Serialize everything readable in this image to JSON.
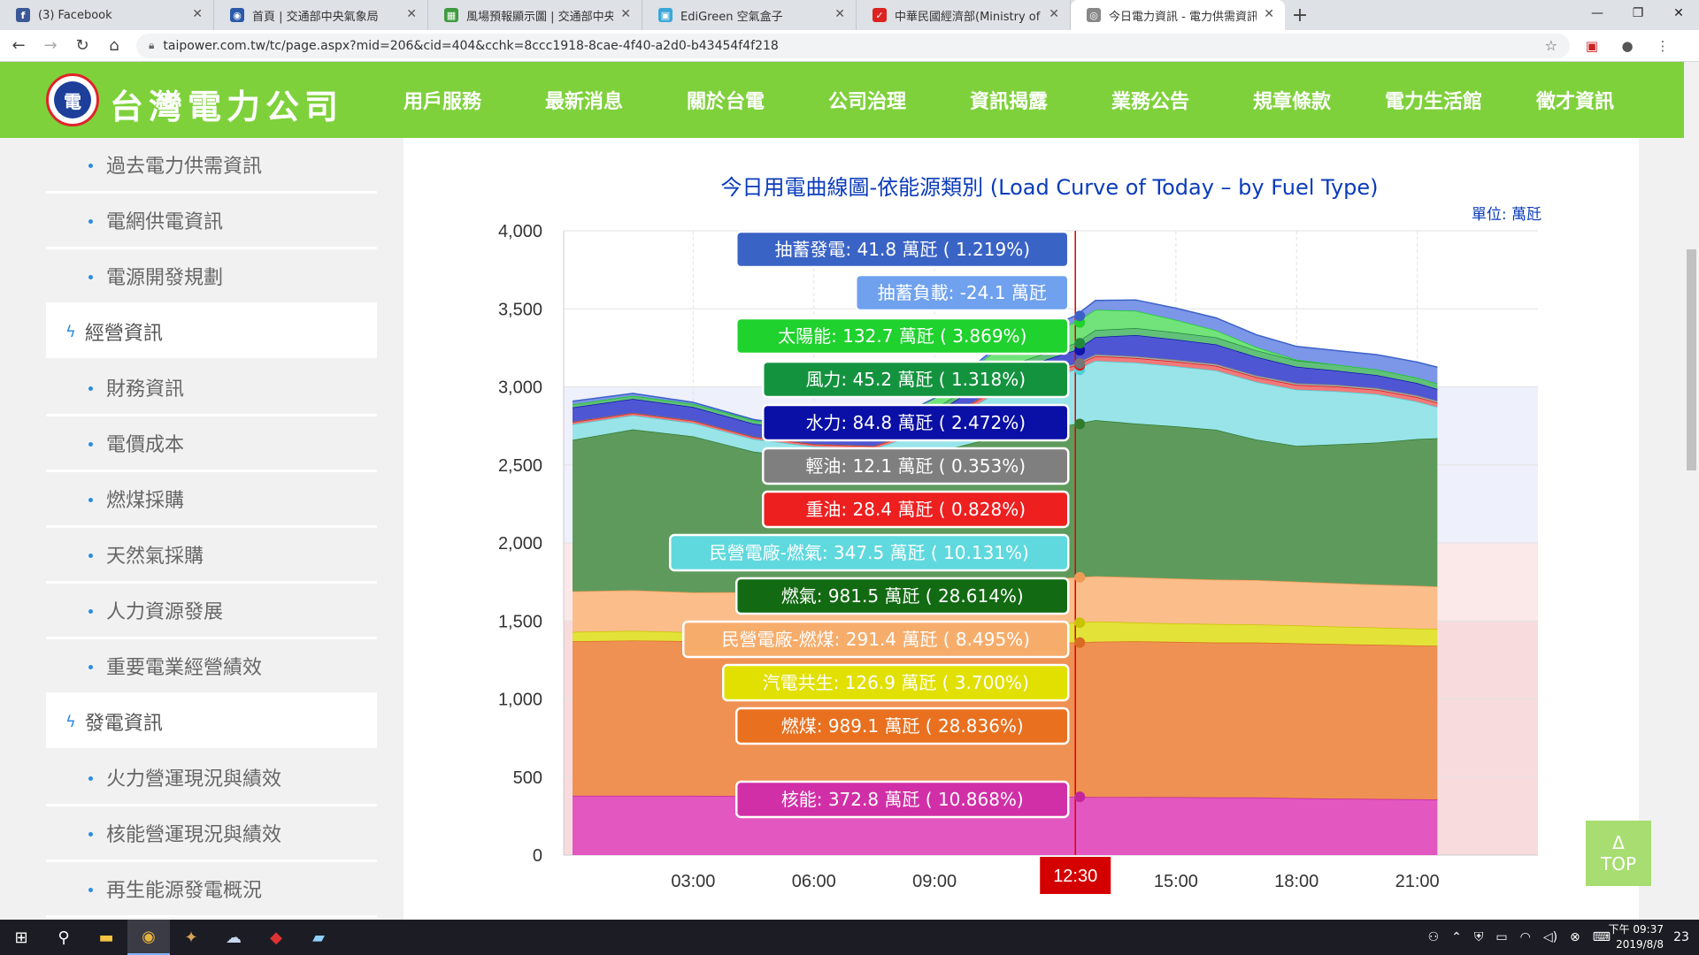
{
  "browser": {
    "tabs": [
      {
        "title": "(3) Facebook",
        "icon": "facebook-icon",
        "color": "#3b5998",
        "glyph": "f"
      },
      {
        "title": "首頁 | 交通部中央氣象局",
        "icon": "eye-icon",
        "color": "#2a5aa8",
        "glyph": "◉"
      },
      {
        "title": "風場預報顯示圖 | 交通部中央氣",
        "icon": "map-icon",
        "color": "#3f9b3f",
        "glyph": "▦"
      },
      {
        "title": "EdiGreen 空氣盒子",
        "icon": "airbox-icon",
        "color": "#3aa7d8",
        "glyph": "▣"
      },
      {
        "title": "中華民國經濟部(Ministry of Eco",
        "icon": "moea-icon",
        "color": "#d22",
        "glyph": "✓"
      },
      {
        "title": "今日電力資訊 - 電力供需資訊 - ",
        "icon": "globe-icon",
        "color": "#888",
        "glyph": "◎"
      }
    ],
    "url": "taipower.com.tw/tc/page.aspx?mid=206&cid=404&cchk=8ccc1918-8cae-4f40-a2d0-b43454f4f218"
  },
  "site": {
    "brand": "台灣電力公司",
    "nav": [
      "用戶服務",
      "最新消息",
      "關於台電",
      "公司治理",
      "資訊揭露",
      "業務公告",
      "規章條款",
      "電力生活館",
      "徵才資訊"
    ]
  },
  "sidebar": {
    "items": [
      {
        "label": "過去電力供需資訊",
        "kind": "item"
      },
      {
        "label": "電網供電資訊",
        "kind": "item"
      },
      {
        "label": "電源開發規劃",
        "kind": "item"
      },
      {
        "label": "經營資訊",
        "kind": "cat"
      },
      {
        "label": "財務資訊",
        "kind": "item"
      },
      {
        "label": "電價成本",
        "kind": "item"
      },
      {
        "label": "燃煤採購",
        "kind": "item"
      },
      {
        "label": "天然氣採購",
        "kind": "item"
      },
      {
        "label": "人力資源發展",
        "kind": "item"
      },
      {
        "label": "重要電業經營績效",
        "kind": "item"
      },
      {
        "label": "發電資訊",
        "kind": "cat"
      },
      {
        "label": "火力營運現況與績效",
        "kind": "item"
      },
      {
        "label": "核能營運現況與績效",
        "kind": "item"
      },
      {
        "label": "再生能源發電概況",
        "kind": "item"
      }
    ]
  },
  "chart_data": {
    "type": "area",
    "title": "今日用電曲線圖-依能源類別 (Load Curve of Today – by Fuel Type)",
    "unit": "單位: 萬瓩",
    "xlabel": "",
    "ylabel": "",
    "ylim": [
      0,
      4000
    ],
    "yticks": [
      0,
      500,
      1000,
      1500,
      2000,
      2500,
      3000,
      3500,
      4000
    ],
    "ytick_labels": [
      "0",
      "500",
      "1,000",
      "1,500",
      "2,000",
      "2,500",
      "3,000",
      "3,500",
      "4,000"
    ],
    "xlim_hours": [
      0,
      24
    ],
    "xticks_hours": [
      3,
      6,
      9,
      15,
      18,
      21
    ],
    "xtick_labels": [
      "03:00",
      "06:00",
      "09:00",
      "15:00",
      "18:00",
      "21:00"
    ],
    "cursor_hours": 12.5,
    "cursor_label": "12:30",
    "x_hours": [
      0,
      1.5,
      3,
      4.5,
      6,
      7.5,
      9,
      10.5,
      12.5,
      13,
      14,
      15,
      16,
      17,
      18,
      19,
      20,
      21,
      21.5
    ],
    "series": [
      {
        "name": "核能",
        "color": "#e257c0",
        "line": "#c2269a",
        "values": [
          380,
          380,
          380,
          378,
          378,
          378,
          377,
          376,
          373,
          372,
          372,
          371,
          370,
          370,
          365,
          362,
          360,
          358,
          356
        ]
      },
      {
        "name": "燃煤",
        "color": "#ef9153",
        "line": "#d96b25",
        "values": [
          990,
          995,
          990,
          992,
          990,
          990,
          992,
          990,
          989,
          995,
          998,
          995,
          992,
          992,
          992,
          990,
          988,
          985,
          985
        ]
      },
      {
        "name": "汽電共生",
        "color": "#e3e239",
        "line": "#c8c400",
        "values": [
          60,
          62,
          58,
          60,
          62,
          65,
          80,
          100,
          127,
          130,
          120,
          118,
          118,
          115,
          115,
          112,
          110,
          108,
          108
        ]
      },
      {
        "name": "民營電廠-燃煤",
        "color": "#fbbd8a",
        "line": "#f09a55",
        "values": [
          260,
          260,
          255,
          255,
          258,
          262,
          270,
          280,
          291,
          290,
          290,
          288,
          285,
          285,
          280,
          278,
          275,
          275,
          272
        ]
      },
      {
        "name": "燃氣",
        "color": "#5f9a5d",
        "line": "#2f7a2c",
        "values": [
          970,
          1030,
          1000,
          900,
          850,
          820,
          860,
          930,
          982,
          1000,
          985,
          975,
          960,
          900,
          870,
          890,
          910,
          940,
          950
        ]
      },
      {
        "name": "民營電廠-燃氣",
        "color": "#98e4e8",
        "line": "#4fcfd6",
        "values": [
          100,
          90,
          85,
          80,
          80,
          90,
          150,
          280,
          348,
          380,
          390,
          385,
          380,
          370,
          360,
          340,
          310,
          240,
          200
        ]
      },
      {
        "name": "重油",
        "color": "#f07a7a",
        "line": "#e21515",
        "values": [
          15,
          15,
          15,
          14,
          14,
          15,
          20,
          25,
          28,
          30,
          30,
          30,
          30,
          30,
          30,
          30,
          28,
          28,
          28
        ]
      },
      {
        "name": "輕油",
        "color": "#a9a9a9",
        "line": "#777777",
        "values": [
          3,
          3,
          3,
          3,
          3,
          3,
          5,
          8,
          12,
          12,
          12,
          12,
          12,
          12,
          12,
          12,
          12,
          12,
          12
        ]
      },
      {
        "name": "水力",
        "color": "#4f56d4",
        "line": "#1014a8",
        "values": [
          90,
          88,
          85,
          82,
          80,
          75,
          75,
          80,
          85,
          110,
          135,
          130,
          125,
          118,
          105,
          90,
          82,
          78,
          75
        ]
      },
      {
        "name": "風力",
        "color": "#61c07a",
        "line": "#1f8a3c",
        "values": [
          20,
          20,
          20,
          22,
          22,
          24,
          28,
          38,
          45,
          45,
          45,
          45,
          45,
          42,
          40,
          38,
          36,
          35,
          35
        ]
      },
      {
        "name": "太陽能",
        "color": "#72e37a",
        "line": "#1ed12b",
        "values": [
          0,
          0,
          0,
          0,
          0,
          15,
          70,
          120,
          133,
          130,
          110,
          80,
          45,
          20,
          5,
          0,
          0,
          0,
          0
        ]
      },
      {
        "name": "抽蓄發電",
        "color": "#7c96e8",
        "line": "#3c62c8",
        "values": [
          20,
          15,
          10,
          5,
          0,
          0,
          0,
          20,
          42,
          60,
          70,
          75,
          80,
          80,
          85,
          90,
          95,
          100,
          105
        ]
      }
    ],
    "tooltip": {
      "time": "12:30",
      "entries": [
        {
          "label": "抽蓄發電: 41.8 萬瓩 ( 1.219%)",
          "bg": "#3a63c6",
          "fg": "#ffffff",
          "value": 41.8
        },
        {
          "label": "抽蓄負載: -24.1 萬瓩",
          "bg": "#6fa1ee",
          "fg": "#ffffff",
          "value": -24.1
        },
        {
          "label": "太陽能: 132.7 萬瓩 ( 3.869%)",
          "bg": "#1fd22d",
          "fg": "#ffffff",
          "value": 132.7
        },
        {
          "label": "風力: 45.2 萬瓩 ( 1.318%)",
          "bg": "#14933f",
          "fg": "#ffffff",
          "value": 45.2
        },
        {
          "label": "水力: 84.8 萬瓩 ( 2.472%)",
          "bg": "#0a0fa6",
          "fg": "#ffffff",
          "value": 84.8
        },
        {
          "label": "輕油: 12.1 萬瓩 ( 0.353%)",
          "bg": "#7f7f7f",
          "fg": "#ffffff",
          "value": 12.1
        },
        {
          "label": "重油: 28.4 萬瓩 ( 0.828%)",
          "bg": "#ee1f1f",
          "fg": "#ffffff",
          "value": 28.4
        },
        {
          "label": "民營電廠-燃氣: 347.5 萬瓩 ( 10.131%)",
          "bg": "#5fd9de",
          "fg": "#ffffff",
          "value": 347.5
        },
        {
          "label": "燃氣: 981.5 萬瓩 ( 28.614%)",
          "bg": "#126a12",
          "fg": "#ffffff",
          "value": 981.5
        },
        {
          "label": "民營電廠-燃煤: 291.4 萬瓩 ( 8.495%)",
          "bg": "#f6ad6c",
          "fg": "#ffffff",
          "value": 291.4
        },
        {
          "label": "汽電共生: 126.9 萬瓩 ( 3.700%)",
          "bg": "#e2e000",
          "fg": "#ffffff",
          "value": 126.9
        },
        {
          "label": "燃煤: 989.1 萬瓩 ( 28.836%)",
          "bg": "#e8701f",
          "fg": "#ffffff",
          "value": 989.1
        },
        {
          "label": "核能: 372.8 萬瓩 ( 10.868%)",
          "bg": "#d12fa7",
          "fg": "#ffffff",
          "value": 372.8
        }
      ]
    }
  },
  "back_to_top": {
    "arrow": "Δ",
    "label": "TOP"
  },
  "taskbar": {
    "time": "下午 09:37",
    "date": "2019/8/8",
    "notif_count": "23"
  }
}
